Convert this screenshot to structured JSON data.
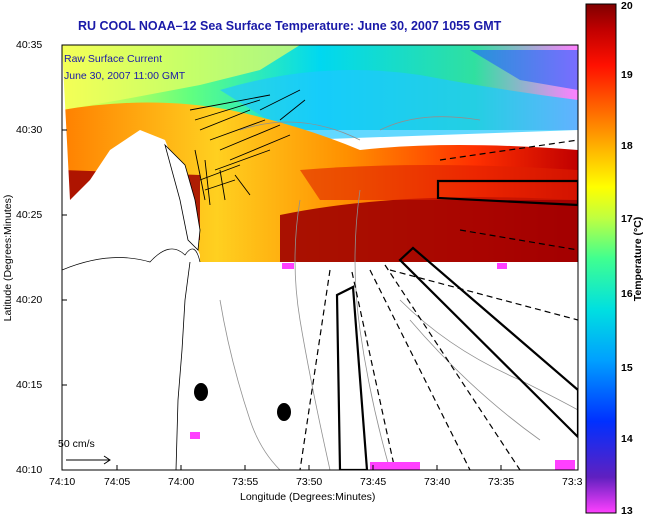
{
  "title": "RU COOL   NOAA–12  Sea Surface Temperature:  June 30, 2007 1055 GMT",
  "current_legend": {
    "label": "Raw Surface Current",
    "time": "June 30, 2007 11:00 GMT"
  },
  "scale_bar": {
    "label": "50 cm/s"
  },
  "axes": {
    "xlabel": "Longitude (Degrees:Minutes)",
    "ylabel": "Latitude (Degrees:Minutes)",
    "x_ticks": [
      "74:10",
      "74:05",
      "74:00",
      "73:55",
      "73:50",
      "73:45",
      "73:40",
      "73:35",
      "73:3"
    ],
    "y_ticks": [
      "40:35",
      "40:30",
      "40:25",
      "40:20",
      "40:15",
      "40:10"
    ]
  },
  "colorbar": {
    "label": "Temperature (°C)",
    "ticks": [
      "20",
      "19",
      "18",
      "17",
      "16",
      "15",
      "14",
      "13"
    ],
    "range": [
      13,
      20
    ],
    "colors": [
      "#ff40ff",
      "#6020c0",
      "#0030ff",
      "#00a0ff",
      "#00e0e0",
      "#40ff90",
      "#c0ff40",
      "#ffff00",
      "#ffb000",
      "#ff6000",
      "#ff1000",
      "#c00000",
      "#800000"
    ]
  },
  "colors": {
    "title": "#1a1aa8",
    "land": "#ffffff",
    "contour": "#909090",
    "vector": "#000000"
  }
}
